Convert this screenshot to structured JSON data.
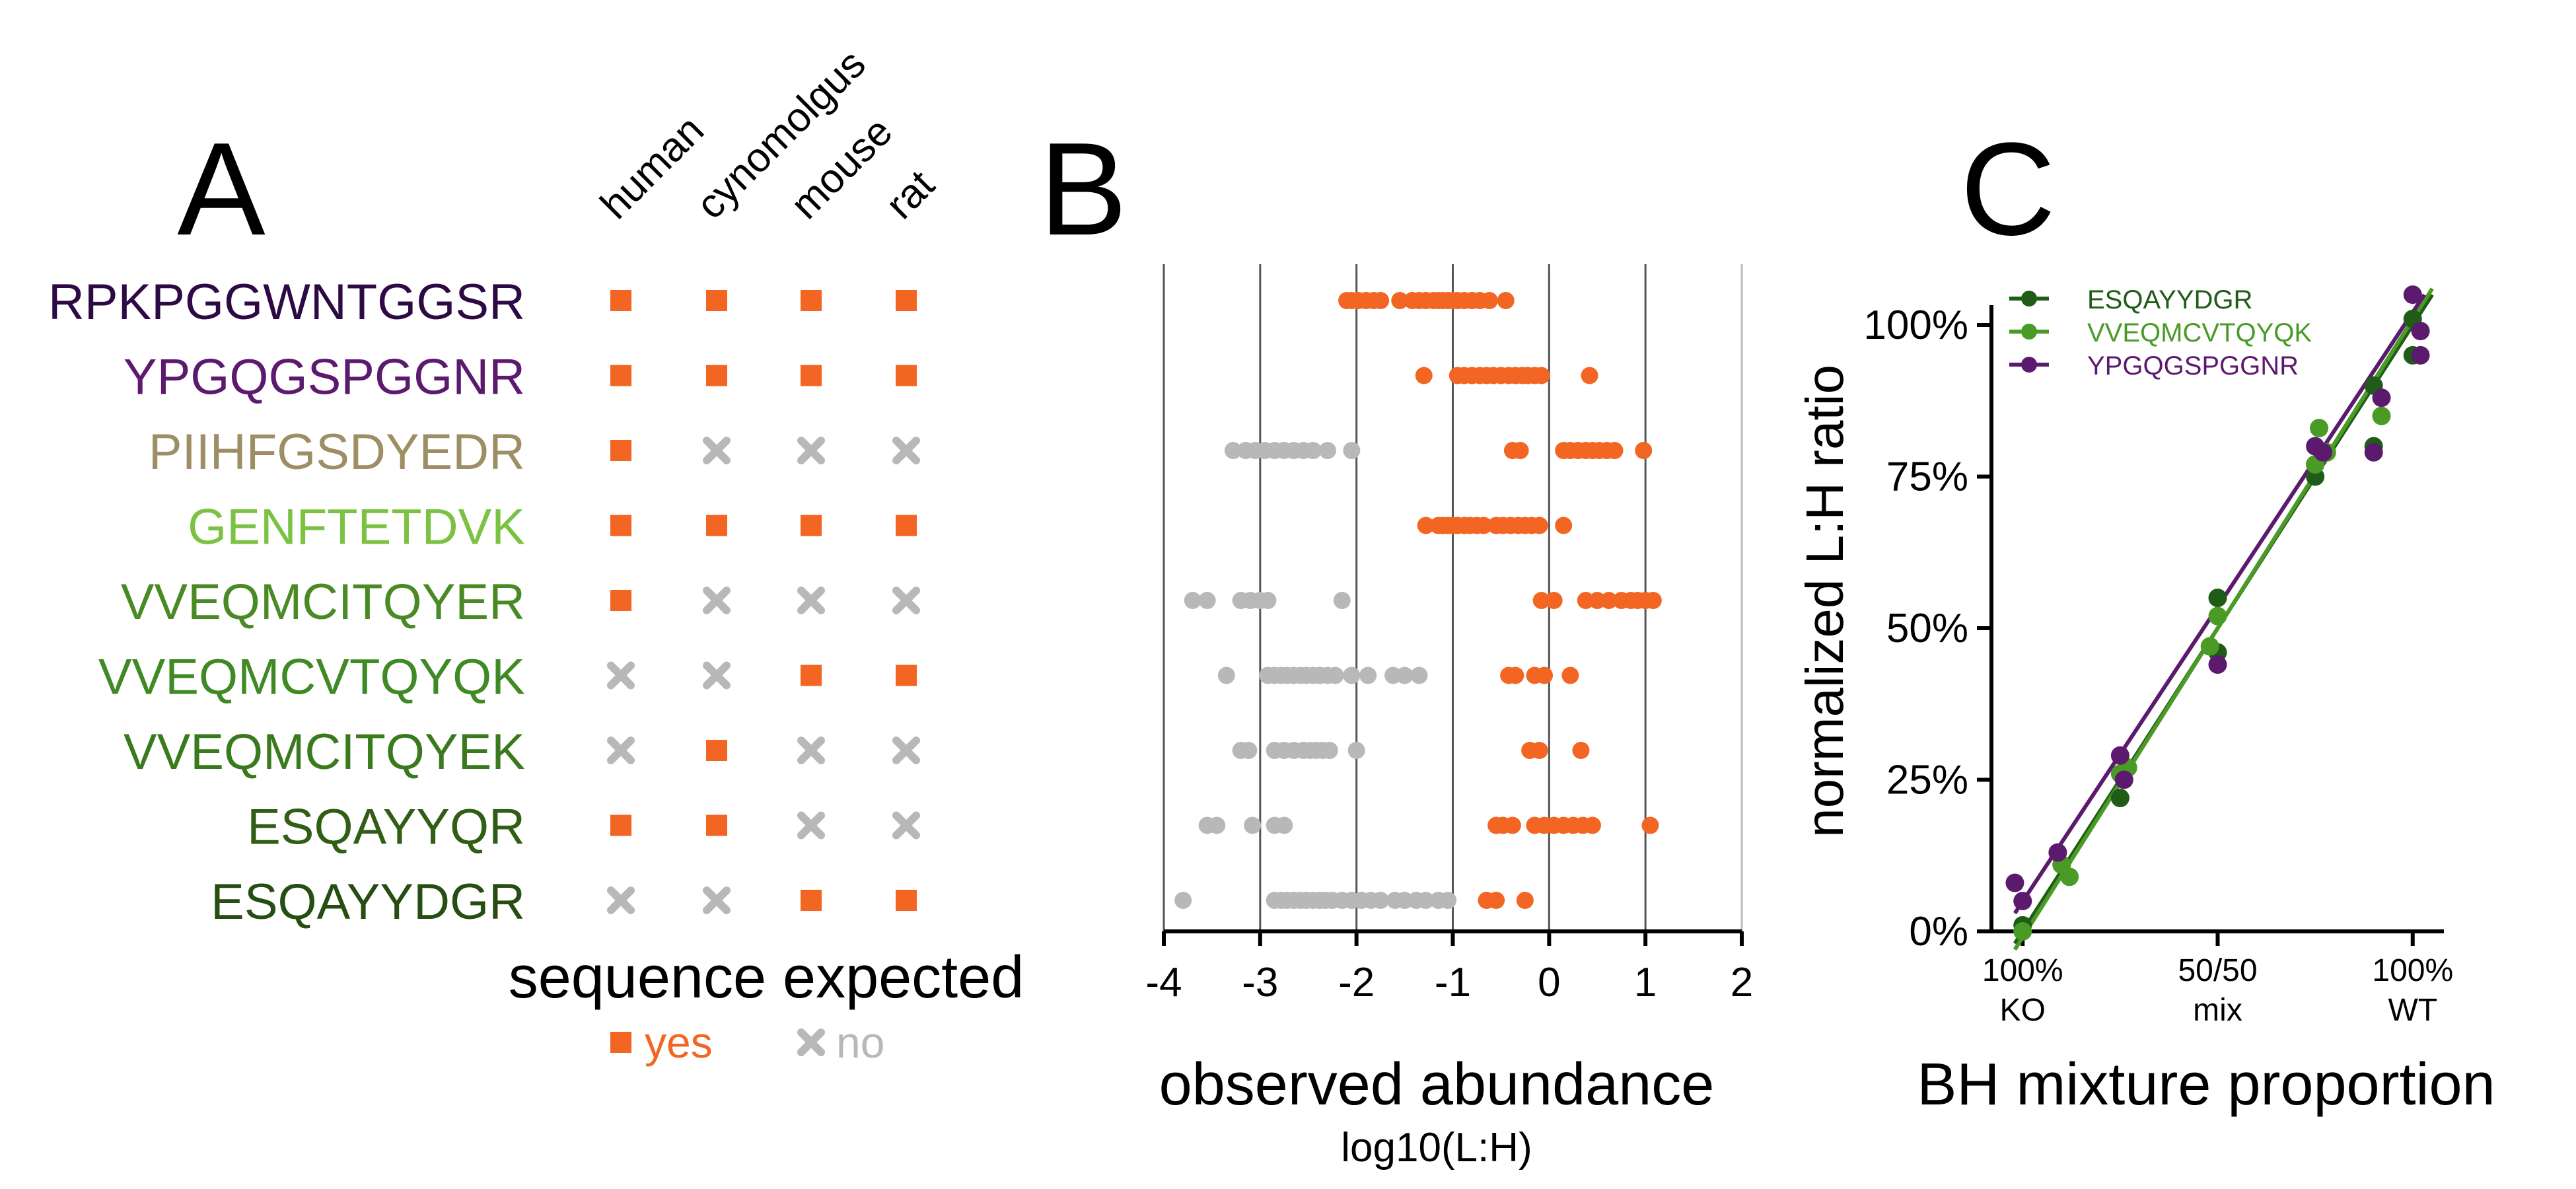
{
  "chart_data": [
    {
      "panel": "A",
      "type": "table",
      "panel_label": "A",
      "columns": [
        "human",
        "cynomolgus",
        "mouse",
        "rat"
      ],
      "rows": [
        {
          "peptide": "RPKPGGWNTGGSR",
          "color": "#2e0a45",
          "expected": [
            "yes",
            "yes",
            "yes",
            "yes"
          ]
        },
        {
          "peptide": "YPGQGSPGGNR",
          "color": "#5c1a6e",
          "expected": [
            "yes",
            "yes",
            "yes",
            "yes"
          ]
        },
        {
          "peptide": "PIIHFGSDYEDR",
          "color": "#9e8e64",
          "expected": [
            "yes",
            "no",
            "no",
            "no"
          ]
        },
        {
          "peptide": "GENFTETDVK",
          "color": "#7cc242",
          "expected": [
            "yes",
            "yes",
            "yes",
            "yes"
          ]
        },
        {
          "peptide": "VVEQMCITQYER",
          "color": "#4a8a24",
          "expected": [
            "yes",
            "no",
            "no",
            "no"
          ]
        },
        {
          "peptide": "VVEQMCVTQYQK",
          "color": "#3f8a24",
          "expected": [
            "no",
            "no",
            "yes",
            "yes"
          ]
        },
        {
          "peptide": "VVEQMCITQYEK",
          "color": "#3a7a1e",
          "expected": [
            "no",
            "yes",
            "no",
            "no"
          ]
        },
        {
          "peptide": "ESQAYYQR",
          "color": "#2f5e14",
          "expected": [
            "yes",
            "yes",
            "no",
            "no"
          ]
        },
        {
          "peptide": "ESQAYYDGR",
          "color": "#264d12",
          "expected": [
            "no",
            "no",
            "yes",
            "yes"
          ]
        }
      ],
      "legend_title": "sequence expected",
      "legend": [
        {
          "label": "yes",
          "marker": "square",
          "color": "#f26522"
        },
        {
          "label": "no",
          "marker": "cross",
          "color": "#b8b8b8"
        }
      ]
    },
    {
      "panel": "B",
      "type": "scatter",
      "panel_label": "B",
      "xlabel": "observed abundance",
      "xsublabel": "log10(L:H)",
      "xlim": [
        -4,
        2
      ],
      "xticks": [
        "-4",
        "-3",
        "-2",
        "-1",
        "0",
        "1",
        "2"
      ],
      "grid": "vertical",
      "colors": {
        "expected": "#f26522",
        "not_expected": "#b8b8b8"
      },
      "rows": [
        {
          "peptide": "RPKPGGWNTGGSR",
          "expected_values": [
            -2.1,
            -2.05,
            -1.98,
            -1.9,
            -1.82,
            -1.75,
            -1.55,
            -1.42,
            -1.35,
            -1.28,
            -1.2,
            -1.15,
            -1.1,
            -1.05,
            -1.0,
            -0.95,
            -0.88,
            -0.8,
            -0.72,
            -0.62,
            -0.45
          ],
          "not_expected_values": []
        },
        {
          "peptide": "YPGQGSPGGNR",
          "expected_values": [
            -1.3,
            -0.95,
            -0.88,
            -0.8,
            -0.72,
            -0.65,
            -0.58,
            -0.5,
            -0.42,
            -0.35,
            -0.28,
            -0.22,
            -0.15,
            -0.08,
            0.42
          ],
          "not_expected_values": []
        },
        {
          "peptide": "PIIHFGSDYEDR",
          "expected_values": [
            -0.38,
            -0.3,
            0.15,
            0.22,
            0.3,
            0.38,
            0.45,
            0.52,
            0.6,
            0.68,
            0.98
          ],
          "not_expected_values": [
            -3.28,
            -3.15,
            -3.05,
            -2.95,
            -2.85,
            -2.75,
            -2.65,
            -2.55,
            -2.45,
            -2.3,
            -2.05
          ]
        },
        {
          "peptide": "GENFTETDVK",
          "expected_values": [
            -1.28,
            -1.15,
            -1.1,
            -1.05,
            -1.0,
            -0.95,
            -0.88,
            -0.82,
            -0.75,
            -0.68,
            -0.55,
            -0.48,
            -0.4,
            -0.32,
            -0.25,
            -0.18,
            -0.1,
            0.15
          ],
          "not_expected_values": []
        },
        {
          "peptide": "VVEQMCITQYER",
          "expected_values": [
            -0.08,
            0.05,
            0.38,
            0.5,
            0.62,
            0.75,
            0.85,
            0.92,
            1.0,
            1.08
          ],
          "not_expected_values": [
            -3.7,
            -3.55,
            -3.2,
            -3.1,
            -3.0,
            -2.92,
            -2.15
          ]
        },
        {
          "peptide": "VVEQMCVTQYQK",
          "expected_values": [
            -0.42,
            -0.35,
            -0.15,
            -0.05,
            0.22
          ],
          "not_expected_values": [
            -3.35,
            -2.92,
            -2.85,
            -2.78,
            -2.72,
            -2.65,
            -2.58,
            -2.52,
            -2.45,
            -2.38,
            -2.3,
            -2.22,
            -2.05,
            -1.88,
            -1.62,
            -1.5,
            -1.35
          ]
        },
        {
          "peptide": "VVEQMCITQYEK",
          "expected_values": [
            -0.2,
            -0.1,
            0.33
          ],
          "not_expected_values": [
            -3.2,
            -3.12,
            -2.85,
            -2.75,
            -2.65,
            -2.55,
            -2.48,
            -2.42,
            -2.35,
            -2.28,
            -2.0
          ]
        },
        {
          "peptide": "ESQAYYQR",
          "expected_values": [
            -0.55,
            -0.48,
            -0.38,
            -0.15,
            -0.05,
            0.05,
            0.15,
            0.25,
            0.35,
            0.45,
            1.05
          ],
          "not_expected_values": [
            -3.55,
            -3.45,
            -3.08,
            -2.85,
            -2.75
          ]
        },
        {
          "peptide": "ESQAYYDGR",
          "expected_values": [
            -0.65,
            -0.55,
            -0.25
          ],
          "not_expected_values": [
            -3.8,
            -2.85,
            -2.78,
            -2.72,
            -2.65,
            -2.58,
            -2.52,
            -2.45,
            -2.38,
            -2.32,
            -2.25,
            -2.15,
            -2.05,
            -1.95,
            -1.85,
            -1.75,
            -1.6,
            -1.5,
            -1.38,
            -1.28,
            -1.15,
            -1.05
          ]
        }
      ]
    },
    {
      "panel": "C",
      "type": "scatter",
      "panel_label": "C",
      "xlabel": "BH mixture proportion",
      "ylabel": "normalized L:H ratio",
      "xlim": [
        -8,
        108
      ],
      "ylim": [
        0,
        100
      ],
      "yticks": [
        "0%",
        "25%",
        "50%",
        "75%",
        "100%"
      ],
      "xticks": [
        {
          "value": 0,
          "line1": "100%",
          "line2": "KO"
        },
        {
          "value": 50,
          "line1": "50/50",
          "line2": "mix"
        },
        {
          "value": 100,
          "line1": "100%",
          "line2": "WT"
        }
      ],
      "legend_position": "top-left",
      "series": [
        {
          "name": "ESQAYYDGR",
          "color": "#1f5c17",
          "x": [
            0,
            10,
            25,
            50,
            50,
            75,
            75,
            90,
            90,
            100,
            100
          ],
          "y": [
            1,
            11,
            22,
            55,
            46,
            77,
            75,
            90,
            80,
            101,
            95
          ],
          "fit": [
            [
              -2,
              -2
            ],
            [
              105,
              105
            ]
          ]
        },
        {
          "name": "VVEQMCVTQYQK",
          "color": "#4a9a26",
          "x": [
            0,
            10,
            12,
            25,
            27,
            48,
            50,
            75,
            76,
            78,
            92
          ],
          "y": [
            0,
            11,
            9,
            26,
            27,
            47,
            52,
            77,
            83,
            79,
            85
          ],
          "fit": [
            [
              -2,
              -3
            ],
            [
              105,
              106
            ]
          ]
        },
        {
          "name": "YPGQGSPGGNR",
          "color": "#5c1a6e",
          "x": [
            -2,
            0,
            9,
            25,
            26,
            50,
            75,
            77,
            90,
            92,
            100,
            102,
            102
          ],
          "y": [
            8,
            5,
            13,
            29,
            25,
            44,
            80,
            79,
            79,
            88,
            105,
            99,
            95
          ],
          "fit": [
            [
              -2,
              3
            ],
            [
              103,
              105
            ]
          ]
        }
      ]
    }
  ]
}
